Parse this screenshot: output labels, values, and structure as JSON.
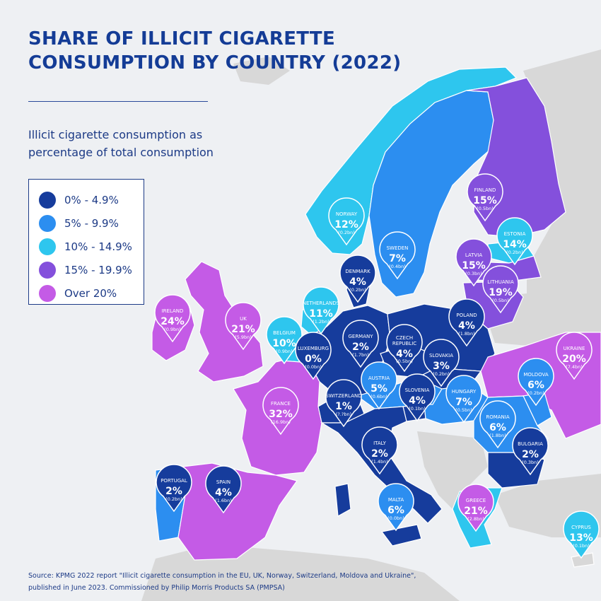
{
  "title_line1": "SHARE OF ILLICIT CIGARETTE",
  "title_line2": "CONSUMPTION BY COUNTRY (2022)",
  "subtitle_line1": "Illicit cigarette consumption as",
  "subtitle_line2": "percentage of total consumption",
  "colors": {
    "band_0_4": "#163c9c",
    "band_5_9": "#2c8ef0",
    "band_10_14": "#2ec6ee",
    "band_15_19": "#8450dc",
    "band_20_plus": "#c45be6",
    "non_covered_land": "#d8d8d8",
    "sea": "#eef0f3",
    "accent": "#143c96"
  },
  "legend": [
    {
      "label": "0% - 4.9%",
      "color": "#163c9c"
    },
    {
      "label": "5% - 9.9%",
      "color": "#2c8ef0"
    },
    {
      "label": "10% - 14.9%",
      "color": "#2ec6ee"
    },
    {
      "label": "15% - 19.9%",
      "color": "#8450dc"
    },
    {
      "label": "Over 20%",
      "color": "#c45be6"
    }
  ],
  "countries": [
    {
      "name": "NORWAY",
      "value": "12%",
      "volume": "(0.2bn)",
      "color": "#2ec6ee"
    },
    {
      "name": "SWEDEN",
      "value": "7%",
      "volume": "(0.4bn)",
      "color": "#2c8ef0"
    },
    {
      "name": "FINLAND",
      "value": "15%",
      "volume": "(0.5bn)",
      "color": "#8450dc"
    },
    {
      "name": "ESTONIA",
      "value": "14%",
      "volume": "(0.2bn)",
      "color": "#2ec6ee"
    },
    {
      "name": "LATVIA",
      "value": "15%",
      "volume": "(0.3bn)",
      "color": "#8450dc"
    },
    {
      "name": "LITHUANIA",
      "value": "19%",
      "volume": "(0.5bn)",
      "color": "#8450dc"
    },
    {
      "name": "DENMARK",
      "value": "4%",
      "volume": "(0.2bn)",
      "color": "#163c9c"
    },
    {
      "name": "IRELAND",
      "value": "24%",
      "volume": "(0.9bn)",
      "color": "#c45be6"
    },
    {
      "name": "UK",
      "value": "21%",
      "volume": "(5.9bn)",
      "color": "#c45be6"
    },
    {
      "name": "NETHERLANDS",
      "value": "11%",
      "volume": "(1.2bn)",
      "color": "#2ec6ee"
    },
    {
      "name": "BELGIUM",
      "value": "10%",
      "volume": "(0.9bn)",
      "color": "#2ec6ee"
    },
    {
      "name": "LUXEMBURG",
      "value": "0%",
      "volume": "(0.0bn)",
      "color": "#163c9c"
    },
    {
      "name": "GERMANY",
      "value": "2%",
      "volume": "(1.7bn)",
      "color": "#163c9c"
    },
    {
      "name": "CZECH REPUBLIC",
      "value": "4%",
      "volume": "(0.5bn)",
      "color": "#163c9c"
    },
    {
      "name": "POLAND",
      "value": "4%",
      "volume": "(1.8bn)",
      "color": "#163c9c"
    },
    {
      "name": "SLOVAKIA",
      "value": "3%",
      "volume": "(0.2bn)",
      "color": "#163c9c"
    },
    {
      "name": "AUSTRIA",
      "value": "5%",
      "volume": "(0.6bn)",
      "color": "#2c8ef0"
    },
    {
      "name": "SWITZERLAND",
      "value": "1%",
      "volume": "(?.?bn)",
      "color": "#163c9c"
    },
    {
      "name": "SLOVENIA",
      "value": "4%",
      "volume": "(0.1bn)",
      "color": "#163c9c"
    },
    {
      "name": "HUNGARY",
      "value": "7%",
      "volume": "(0.5bn)",
      "color": "#2c8ef0"
    },
    {
      "name": "UKRAINE",
      "value": "20%",
      "volume": "(7.4bn)",
      "color": "#c45be6"
    },
    {
      "name": "MOLDOVA",
      "value": "6%",
      "volume": "(0.2bn)",
      "color": "#2c8ef0"
    },
    {
      "name": "ROMANIA",
      "value": "6%",
      "volume": "(1.8bn)",
      "color": "#2c8ef0"
    },
    {
      "name": "BULGARIA",
      "value": "2%",
      "volume": "(0.3bn)",
      "color": "#163c9c"
    },
    {
      "name": "FRANCE",
      "value": "32%",
      "volume": "(16.9bn)",
      "color": "#c45be6"
    },
    {
      "name": "ITALY",
      "value": "2%",
      "volume": "(1.4bn)",
      "color": "#163c9c"
    },
    {
      "name": "PORTUGAL",
      "value": "2%",
      "volume": "(0.2bn)",
      "color": "#163c9c"
    },
    {
      "name": "SPAIN",
      "value": "4%",
      "volume": "(1.6bn)",
      "color": "#163c9c"
    },
    {
      "name": "MALTA",
      "value": "6%",
      "volume": "(0.0bn)",
      "color": "#2c8ef0"
    },
    {
      "name": "GREECE",
      "value": "21%",
      "volume": "(2.8bn)",
      "color": "#c45be6"
    },
    {
      "name": "CYPRUS",
      "value": "13%",
      "volume": "(0.1bn)",
      "color": "#2ec6ee"
    }
  ],
  "source_line1": "Source: KPMG 2022 report \"Illicit cigarette consumption in the EU, UK, Norway, Switzerland, Moldova and Ukraine\",",
  "source_line2": "published in June 2023. Commissioned by Philip Morris Products SA (PMPSA)"
}
